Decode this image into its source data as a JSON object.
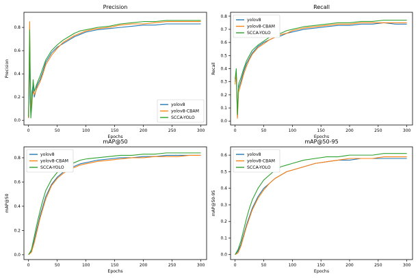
{
  "chart_data": [
    {
      "type": "line",
      "title": "Precision",
      "xlabel": "Epochs",
      "ylabel": "Precision",
      "xlim": [
        -8,
        310
      ],
      "ylim": [
        -0.04,
        0.93
      ],
      "xticks": [
        0,
        50,
        100,
        150,
        200,
        250,
        300
      ],
      "yticks": [
        0.0,
        0.2,
        0.4,
        0.6,
        0.8
      ],
      "legend_position": "bottom-right",
      "series": [
        {
          "name": "yolov8",
          "color": "#1f77b4",
          "x": [
            0,
            2,
            3,
            4,
            6,
            8,
            10,
            15,
            20,
            25,
            30,
            40,
            50,
            60,
            70,
            80,
            90,
            100,
            120,
            140,
            160,
            180,
            200,
            220,
            240,
            260,
            280,
            300
          ],
          "y": [
            0.02,
            0.6,
            0.15,
            0.05,
            0.25,
            0.3,
            0.2,
            0.3,
            0.35,
            0.42,
            0.5,
            0.58,
            0.63,
            0.66,
            0.69,
            0.72,
            0.74,
            0.76,
            0.78,
            0.79,
            0.8,
            0.81,
            0.82,
            0.82,
            0.83,
            0.83,
            0.83,
            0.83
          ]
        },
        {
          "name": "yolov8-CBAM",
          "color": "#ff7f0e",
          "x": [
            0,
            2,
            3,
            4,
            6,
            8,
            10,
            15,
            20,
            25,
            30,
            40,
            50,
            60,
            70,
            80,
            90,
            100,
            120,
            140,
            160,
            180,
            200,
            220,
            240,
            260,
            280,
            300
          ],
          "y": [
            0.02,
            0.85,
            0.3,
            0.05,
            0.2,
            0.25,
            0.22,
            0.28,
            0.33,
            0.4,
            0.48,
            0.56,
            0.62,
            0.67,
            0.7,
            0.73,
            0.75,
            0.77,
            0.79,
            0.8,
            0.82,
            0.83,
            0.83,
            0.84,
            0.85,
            0.85,
            0.85,
            0.85
          ]
        },
        {
          "name": "SCCA-YOLO",
          "color": "#2ca02c",
          "x": [
            0,
            2,
            3,
            4,
            6,
            8,
            10,
            15,
            20,
            25,
            30,
            40,
            50,
            60,
            70,
            80,
            90,
            100,
            120,
            140,
            160,
            180,
            200,
            220,
            240,
            260,
            280,
            300
          ],
          "y": [
            0.03,
            0.78,
            0.4,
            0.02,
            0.15,
            0.35,
            0.25,
            0.32,
            0.38,
            0.45,
            0.52,
            0.6,
            0.65,
            0.69,
            0.72,
            0.75,
            0.77,
            0.78,
            0.8,
            0.81,
            0.83,
            0.84,
            0.85,
            0.85,
            0.86,
            0.86,
            0.86,
            0.86
          ]
        }
      ]
    },
    {
      "type": "line",
      "title": "Recall",
      "xlabel": "Epochs",
      "ylabel": "Recall",
      "xlim": [
        -8,
        310
      ],
      "ylim": [
        -0.03,
        0.83
      ],
      "xticks": [
        0,
        50,
        100,
        150,
        200,
        250,
        300
      ],
      "yticks": [
        0.0,
        0.1,
        0.2,
        0.3,
        0.4,
        0.5,
        0.6,
        0.7,
        0.8
      ],
      "legend_position": "top-left",
      "series": [
        {
          "name": "yolov8",
          "color": "#1f77b4",
          "x": [
            0,
            2,
            4,
            6,
            10,
            15,
            20,
            25,
            30,
            40,
            50,
            60,
            70,
            80,
            90,
            100,
            120,
            140,
            160,
            180,
            200,
            220,
            240,
            260,
            280,
            300
          ],
          "y": [
            0.3,
            0.38,
            0.03,
            0.25,
            0.3,
            0.38,
            0.44,
            0.48,
            0.52,
            0.57,
            0.6,
            0.62,
            0.64,
            0.65,
            0.67,
            0.68,
            0.7,
            0.71,
            0.72,
            0.73,
            0.73,
            0.74,
            0.74,
            0.75,
            0.74,
            0.74
          ]
        },
        {
          "name": "yolov8-CBAM",
          "color": "#ff7f0e",
          "x": [
            0,
            2,
            4,
            6,
            10,
            15,
            20,
            25,
            30,
            40,
            50,
            60,
            70,
            80,
            90,
            100,
            120,
            140,
            160,
            180,
            200,
            220,
            240,
            260,
            280,
            300
          ],
          "y": [
            0.28,
            0.36,
            0.02,
            0.22,
            0.28,
            0.36,
            0.42,
            0.47,
            0.51,
            0.56,
            0.59,
            0.62,
            0.64,
            0.66,
            0.67,
            0.69,
            0.71,
            0.72,
            0.73,
            0.74,
            0.74,
            0.75,
            0.75,
            0.75,
            0.75,
            0.75
          ]
        },
        {
          "name": "SCCA-YOLO",
          "color": "#2ca02c",
          "x": [
            0,
            2,
            4,
            6,
            10,
            15,
            20,
            25,
            30,
            40,
            50,
            60,
            70,
            80,
            90,
            100,
            120,
            140,
            160,
            180,
            200,
            220,
            240,
            260,
            280,
            300
          ],
          "y": [
            0.32,
            0.4,
            0.05,
            0.28,
            0.33,
            0.4,
            0.46,
            0.5,
            0.54,
            0.58,
            0.61,
            0.64,
            0.66,
            0.67,
            0.69,
            0.7,
            0.72,
            0.73,
            0.74,
            0.75,
            0.75,
            0.76,
            0.76,
            0.77,
            0.77,
            0.77
          ]
        }
      ]
    },
    {
      "type": "line",
      "title": "mAP@50",
      "xlabel": "Epochs",
      "ylabel": "mAP@50",
      "xlim": [
        -8,
        310
      ],
      "ylim": [
        -0.04,
        0.89
      ],
      "xticks": [
        0,
        50,
        100,
        150,
        200,
        250,
        300
      ],
      "yticks": [
        0.0,
        0.2,
        0.4,
        0.6,
        0.8
      ],
      "legend_position": "top-left",
      "series": [
        {
          "name": "yolov8",
          "color": "#1f77b4",
          "x": [
            0,
            5,
            10,
            15,
            20,
            25,
            30,
            40,
            50,
            60,
            70,
            80,
            90,
            100,
            120,
            140,
            160,
            180,
            200,
            220,
            240,
            260,
            280,
            300
          ],
          "y": [
            0.0,
            0.03,
            0.12,
            0.22,
            0.32,
            0.4,
            0.48,
            0.58,
            0.64,
            0.68,
            0.71,
            0.73,
            0.75,
            0.76,
            0.78,
            0.79,
            0.8,
            0.8,
            0.81,
            0.81,
            0.82,
            0.82,
            0.82,
            0.82
          ]
        },
        {
          "name": "yolov8-CBAM",
          "color": "#ff7f0e",
          "x": [
            0,
            5,
            10,
            15,
            20,
            25,
            30,
            40,
            50,
            60,
            70,
            80,
            90,
            100,
            120,
            140,
            160,
            180,
            200,
            220,
            240,
            260,
            280,
            300
          ],
          "y": [
            0.0,
            0.02,
            0.1,
            0.2,
            0.3,
            0.38,
            0.46,
            0.57,
            0.63,
            0.67,
            0.7,
            0.72,
            0.74,
            0.75,
            0.77,
            0.78,
            0.79,
            0.8,
            0.8,
            0.81,
            0.81,
            0.81,
            0.82,
            0.82
          ]
        },
        {
          "name": "SCCA-YOLO",
          "color": "#2ca02c",
          "x": [
            0,
            5,
            10,
            15,
            20,
            25,
            30,
            40,
            50,
            60,
            70,
            80,
            90,
            100,
            120,
            140,
            160,
            180,
            200,
            220,
            240,
            260,
            280,
            300
          ],
          "y": [
            0.0,
            0.04,
            0.15,
            0.26,
            0.36,
            0.45,
            0.53,
            0.62,
            0.68,
            0.71,
            0.74,
            0.76,
            0.78,
            0.79,
            0.8,
            0.81,
            0.82,
            0.82,
            0.83,
            0.83,
            0.84,
            0.84,
            0.84,
            0.84
          ]
        }
      ]
    },
    {
      "type": "line",
      "title": "mAP@50-95",
      "xlabel": "Epochs",
      "ylabel": "mAP@50-95",
      "xlim": [
        -8,
        310
      ],
      "ylim": [
        -0.03,
        0.65
      ],
      "xticks": [
        0,
        50,
        100,
        150,
        200,
        250,
        300
      ],
      "yticks": [
        0.0,
        0.1,
        0.2,
        0.3,
        0.4,
        0.5,
        0.6
      ],
      "legend_position": "top-left",
      "series": [
        {
          "name": "yolov8",
          "color": "#1f77b4",
          "x": [
            0,
            5,
            10,
            15,
            20,
            25,
            30,
            40,
            50,
            60,
            70,
            80,
            90,
            100,
            120,
            140,
            160,
            180,
            200,
            220,
            240,
            260,
            280,
            300
          ],
          "y": [
            0.0,
            0.02,
            0.06,
            0.12,
            0.18,
            0.23,
            0.28,
            0.35,
            0.4,
            0.43,
            0.46,
            0.48,
            0.5,
            0.51,
            0.53,
            0.55,
            0.56,
            0.57,
            0.57,
            0.58,
            0.58,
            0.58,
            0.58,
            0.58
          ]
        },
        {
          "name": "yolov8-CBAM",
          "color": "#ff7f0e",
          "x": [
            0,
            5,
            10,
            15,
            20,
            25,
            30,
            40,
            50,
            60,
            70,
            80,
            90,
            100,
            120,
            140,
            160,
            180,
            200,
            220,
            240,
            260,
            280,
            300
          ],
          "y": [
            0.0,
            0.01,
            0.05,
            0.11,
            0.17,
            0.22,
            0.27,
            0.34,
            0.39,
            0.43,
            0.46,
            0.48,
            0.5,
            0.51,
            0.53,
            0.55,
            0.56,
            0.57,
            0.58,
            0.58,
            0.58,
            0.59,
            0.59,
            0.59
          ]
        },
        {
          "name": "SCCA-YOLO",
          "color": "#2ca02c",
          "x": [
            0,
            5,
            10,
            15,
            20,
            25,
            30,
            40,
            50,
            60,
            70,
            80,
            90,
            100,
            120,
            140,
            160,
            180,
            200,
            220,
            240,
            260,
            280,
            300
          ],
          "y": [
            0.0,
            0.03,
            0.08,
            0.15,
            0.22,
            0.28,
            0.33,
            0.4,
            0.45,
            0.48,
            0.51,
            0.53,
            0.54,
            0.55,
            0.57,
            0.58,
            0.59,
            0.59,
            0.6,
            0.6,
            0.6,
            0.61,
            0.61,
            0.61
          ]
        }
      ]
    }
  ]
}
